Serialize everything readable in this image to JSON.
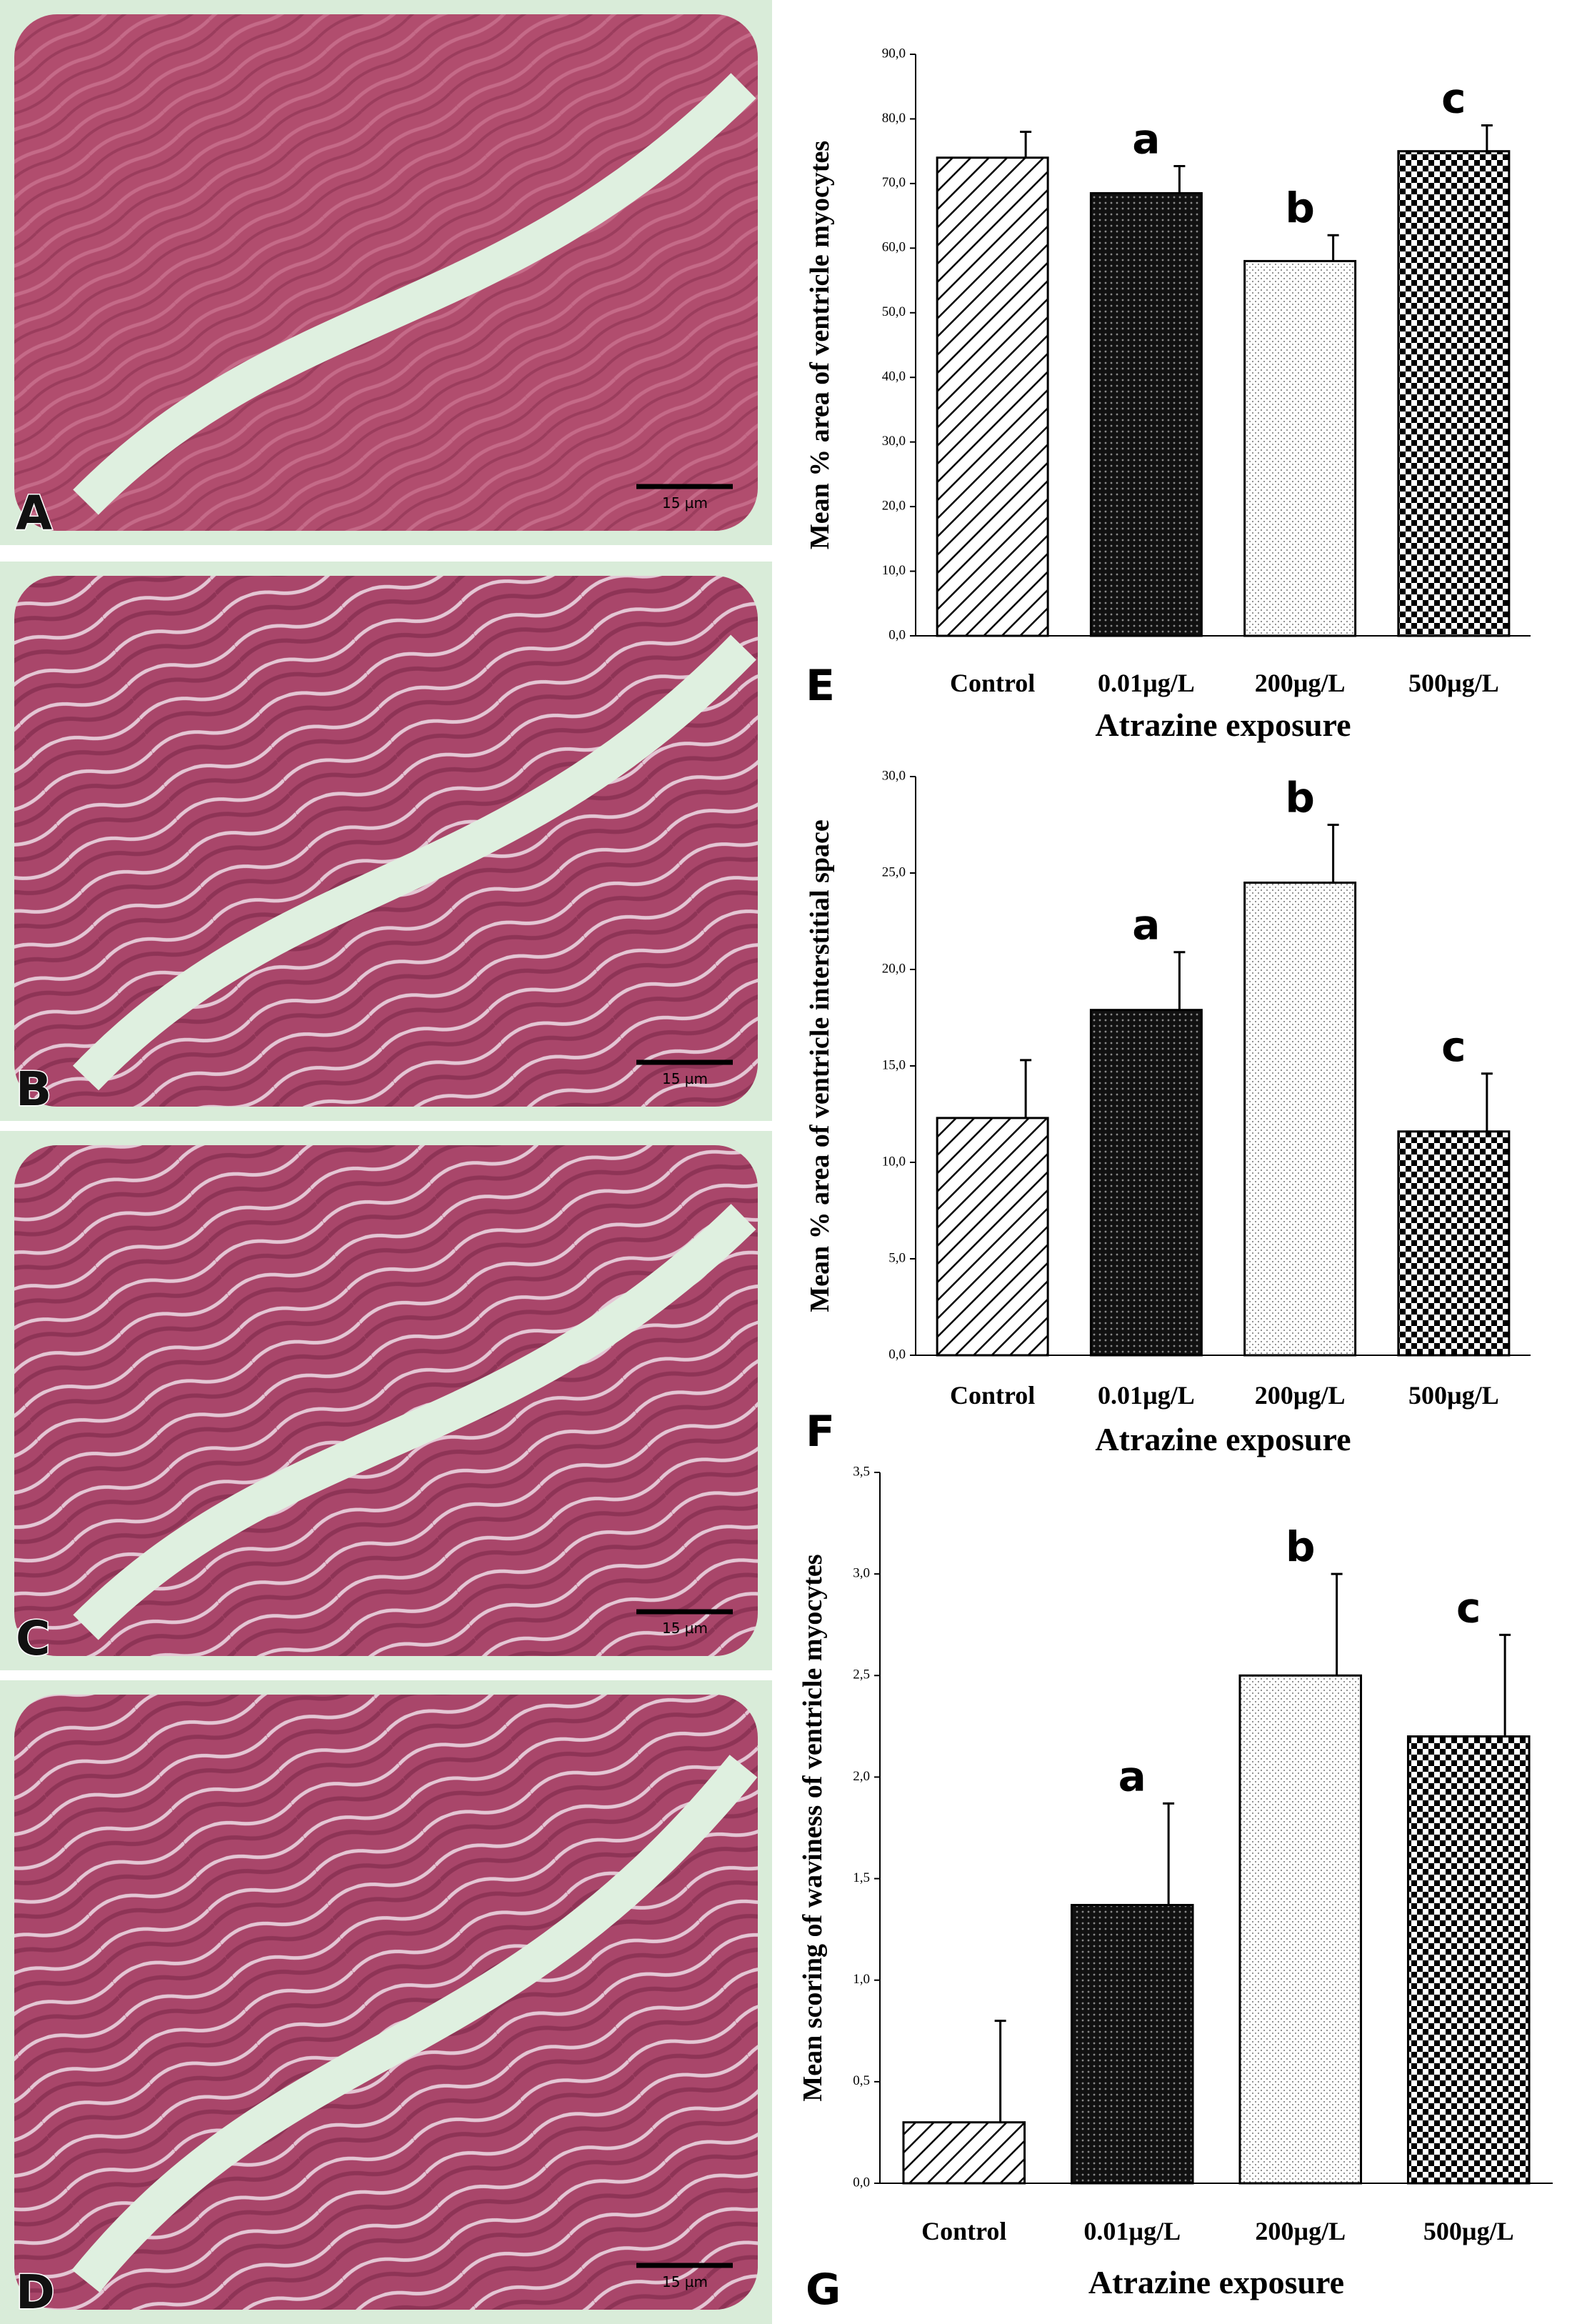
{
  "micrographs": [
    {
      "label": "A",
      "scale_bar": "15 µm"
    },
    {
      "label": "B",
      "scale_bar": "15 µm"
    },
    {
      "label": "C",
      "scale_bar": "15 µm"
    },
    {
      "label": "D",
      "scale_bar": "15 µm"
    }
  ],
  "chart_data": [
    {
      "type": "bar",
      "panel": "E",
      "ylabel": "Mean % area of ventricle myocytes",
      "xlabel": "Atrazine exposure",
      "categories": [
        "Control",
        "0.01µg/L",
        "200µg/L",
        "500µg/L"
      ],
      "values": [
        74,
        68.5,
        58,
        75
      ],
      "errors": [
        4,
        4.2,
        4,
        4
      ],
      "annotations": [
        null,
        "a",
        "b",
        "c"
      ],
      "bar_patterns": [
        "hatch",
        "dense",
        "dots",
        "checker"
      ],
      "ylim": [
        0,
        90
      ],
      "yticks": [
        {
          "value": 0,
          "label": "0,0"
        },
        {
          "value": 10,
          "label": "10,0"
        },
        {
          "value": 20,
          "label": "20,0"
        },
        {
          "value": 30,
          "label": "30,0"
        },
        {
          "value": 40,
          "label": "40,0"
        },
        {
          "value": 50,
          "label": "50,0"
        },
        {
          "value": 60,
          "label": "60,0"
        },
        {
          "value": 70,
          "label": "70,0"
        },
        {
          "value": 80,
          "label": "80,0"
        },
        {
          "value": 90,
          "label": "90,0"
        }
      ]
    },
    {
      "type": "bar",
      "panel": "F",
      "ylabel": "Mean % area of ventricle interstitial space",
      "xlabel": "Atrazine exposure",
      "categories": [
        "Control",
        "0.01µg/L",
        "200µg/L",
        "500µg/L"
      ],
      "values": [
        12.3,
        17.9,
        24.5,
        11.6
      ],
      "errors": [
        3,
        3,
        3,
        3
      ],
      "annotations": [
        null,
        "a",
        "b",
        "c"
      ],
      "bar_patterns": [
        "hatch",
        "dense",
        "dots",
        "checker"
      ],
      "ylim": [
        0,
        30
      ],
      "yticks": [
        {
          "value": 0,
          "label": "0,0"
        },
        {
          "value": 5,
          "label": "5,0"
        },
        {
          "value": 10,
          "label": "10,0"
        },
        {
          "value": 15,
          "label": "15,0"
        },
        {
          "value": 20,
          "label": "20,0"
        },
        {
          "value": 25,
          "label": "25,0"
        },
        {
          "value": 30,
          "label": "30,0"
        }
      ]
    },
    {
      "type": "bar",
      "panel": "G",
      "ylabel": "Mean scoring of waviness of ventricle  myocytes",
      "xlabel": "Atrazine exposure",
      "categories": [
        "Control",
        "0.01µg/L",
        "200µg/L",
        "500µg/L"
      ],
      "values": [
        0.3,
        1.37,
        2.5,
        2.2
      ],
      "errors": [
        0.5,
        0.5,
        0.5,
        0.5
      ],
      "annotations": [
        null,
        "a",
        "b",
        "c"
      ],
      "bar_patterns": [
        "hatch",
        "dense",
        "dots",
        "checker"
      ],
      "ylim": [
        0,
        3.5
      ],
      "yticks": [
        {
          "value": 0,
          "label": "0,0"
        },
        {
          "value": 0.5,
          "label": "0,5"
        },
        {
          "value": 1,
          "label": "1,0"
        },
        {
          "value": 1.5,
          "label": "1,5"
        },
        {
          "value": 2,
          "label": "2,0"
        },
        {
          "value": 2.5,
          "label": "2,5"
        },
        {
          "value": 3,
          "label": "3,0"
        },
        {
          "value": 3.5,
          "label": "3,5"
        }
      ]
    }
  ]
}
